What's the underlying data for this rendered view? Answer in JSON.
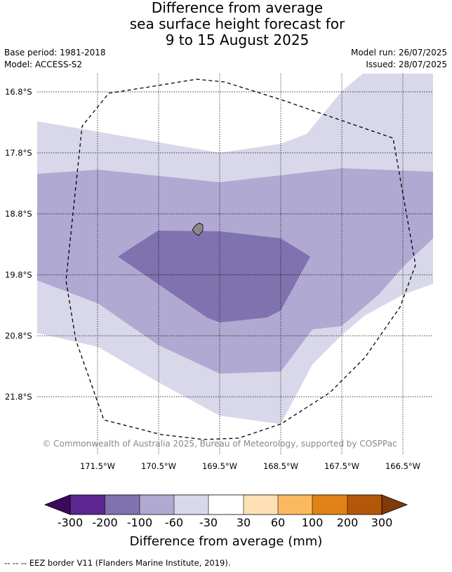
{
  "title": {
    "line1": "Difference from average",
    "line2": "sea surface height forecast for",
    "line3": "9 to 15 August 2025"
  },
  "meta": {
    "base_period": "Base period: 1981-2018",
    "model": "Model: ACCESS-S2",
    "model_run": "Model run: 26/07/2025",
    "issued": "Issued: 28/07/2025"
  },
  "map": {
    "latitude_labels": [
      "16.8°S",
      "17.8°S",
      "18.8°S",
      "19.8°S",
      "20.8°S",
      "21.8°S"
    ],
    "longitude_labels": [
      "171.5°W",
      "170.5°W",
      "169.5°W",
      "168.5°W",
      "167.5°W",
      "166.5°W"
    ],
    "copyright": "© Commonwealth of Australia 2025, Bureau of Meteorology, supported by COSPPac",
    "fill_colors": {
      "band_30_60": "#d8d8ea",
      "band_60_100": "#b0a9d2",
      "band_100_200": "#8072ae",
      "island": "#8a8a8a",
      "background": "#ffffff"
    }
  },
  "colorbar": {
    "ticks": [
      "-300",
      "-200",
      "-100",
      "-60",
      "-30",
      "30",
      "60",
      "100",
      "200",
      "300"
    ],
    "label": "Difference from average (mm)",
    "colors": {
      "below_min": "#3a0a5c",
      "c1": "#5b2690",
      "c2": "#8072ae",
      "c3": "#b0a9d2",
      "c4": "#d8d8ea",
      "c5": "#ffffff",
      "c6": "#fde0b6",
      "c7": "#fbb95f",
      "c8": "#e08215",
      "c9": "#b35808",
      "above_max": "#7f3b08"
    }
  },
  "footer": {
    "legend_text": "--  --  -- EEZ border V11 (Flanders Marine Institute, 2019)."
  }
}
